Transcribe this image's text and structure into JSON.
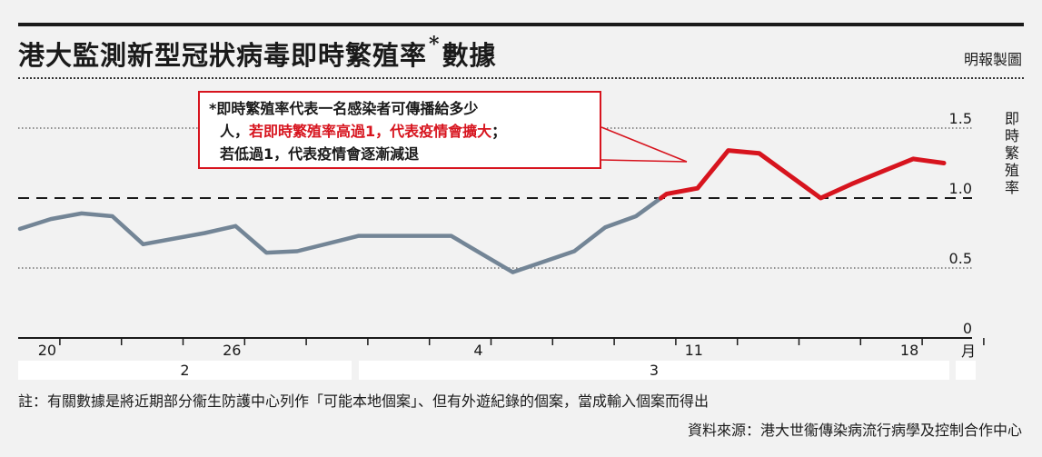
{
  "header": {
    "title_main": "港大監測新型冠狀病毒即時繁殖率",
    "title_star": "*",
    "title_tail": "數據",
    "credit": "明報製圖"
  },
  "note": {
    "line1": "*即時繁殖率代表一名感染者可傳播給多少",
    "line2_a": "人，",
    "line2_red": "若即時繁殖率高過1，代表疫情會擴大",
    "line2_b": "；",
    "line3": "若低過1，代表疫情會逐漸減退"
  },
  "axis": {
    "ylabel": "即時繁殖率",
    "month_unit": "月"
  },
  "footer": {
    "note": "註：有關數據是將近期部分衞生防護中心列作「可能本地個案」、但有外遊紀錄的個案，當成輸入個案而得出",
    "source": "資料來源：港大世衞傳染病流行病學及控制合作中心"
  },
  "chart_data": {
    "type": "line",
    "title": "港大監測新型冠狀病毒即時繁殖率*數據",
    "ylabel": "即時繁殖率",
    "ylim": [
      0,
      1.5
    ],
    "yticks": [
      "0",
      "0.5",
      "1.0",
      "1.5"
    ],
    "threshold": 1.0,
    "xticks": [
      {
        "day": 20,
        "label": "20"
      },
      {
        "day": 26,
        "label": "26"
      },
      {
        "day": 34,
        "label": "4"
      },
      {
        "day": 41,
        "label": "11"
      },
      {
        "day": 48,
        "label": "18"
      }
    ],
    "day_range": [
      19,
      51
    ],
    "months": [
      {
        "label": "2",
        "start_day": 19,
        "end_day": 30
      },
      {
        "label": "3",
        "start_day": 30,
        "end_day": 51
      }
    ],
    "series": [
      {
        "color_low": "#738596",
        "color_high": "#d7141e",
        "days": [
          19,
          20,
          21,
          22,
          23,
          25,
          26,
          27,
          28,
          30,
          31,
          33,
          35,
          37,
          38,
          39,
          40,
          41,
          42,
          43,
          44,
          45,
          46,
          47,
          48,
          49
        ],
        "values": [
          0.78,
          0.85,
          0.89,
          0.87,
          0.67,
          0.75,
          0.8,
          0.61,
          0.62,
          0.73,
          0.73,
          0.73,
          0.47,
          0.62,
          0.79,
          0.87,
          1.03,
          1.07,
          1.34,
          1.32,
          1.16,
          1.0,
          1.1,
          1.19,
          1.28,
          1.25
        ]
      }
    ]
  }
}
